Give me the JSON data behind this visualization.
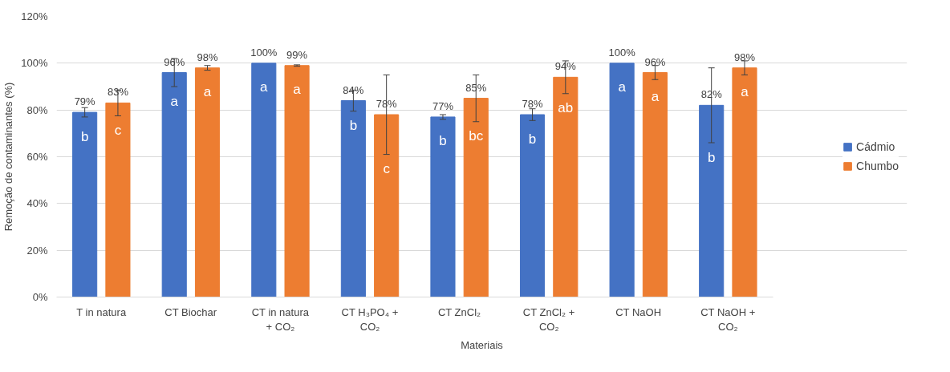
{
  "chart_data": {
    "type": "bar",
    "xlabel": "Materiais",
    "ylabel": "Remoção de contaminantes (%)",
    "categories": [
      "T in natura",
      "CT Biochar",
      "CT in natura + CO₂",
      "CT H₃PO₄ + CO₂",
      "CT ZnCl₂",
      "CT ZnCl₂ + CO₂",
      "CT NaOH",
      "CT NaOH + CO₂"
    ],
    "series": [
      {
        "name": "Cádmio",
        "color": "#4472c4",
        "values": [
          79,
          96,
          100,
          84,
          77,
          78,
          100,
          82
        ],
        "errors": [
          2,
          6,
          null,
          4.5,
          1,
          2.5,
          null,
          16
        ],
        "value_labels": [
          "79%",
          "96%",
          "100%",
          "84%",
          "77%",
          "78%",
          "100%",
          "82%"
        ]
      },
      {
        "name": "Chumbo",
        "color": "#ed7d31",
        "values": [
          83,
          98,
          99,
          78,
          85,
          94,
          96,
          98
        ],
        "errors": [
          5.5,
          1,
          0.3,
          17,
          10,
          7,
          3,
          3
        ],
        "value_labels": [
          "83%",
          "98%",
          "99%",
          "78%",
          "85%",
          "94%",
          "96%",
          "98%"
        ]
      }
    ],
    "ylim": [
      0,
      120
    ],
    "yticks": [
      {
        "value": 0,
        "label": "0%"
      },
      {
        "value": 20,
        "label": "20%"
      },
      {
        "value": 40,
        "label": "40%"
      },
      {
        "value": 60,
        "label": "60%"
      },
      {
        "value": 80,
        "label": "80%"
      },
      {
        "value": 100,
        "label": "100%"
      },
      {
        "value": 120,
        "label": "120%"
      }
    ],
    "grid": "y",
    "legend": "right",
    "annotations": [
      "b",
      "c",
      "a",
      "a",
      "a",
      "a",
      "b",
      "c",
      "b",
      "bc",
      "b",
      "ab",
      "a",
      "a",
      "b",
      "a"
    ]
  }
}
